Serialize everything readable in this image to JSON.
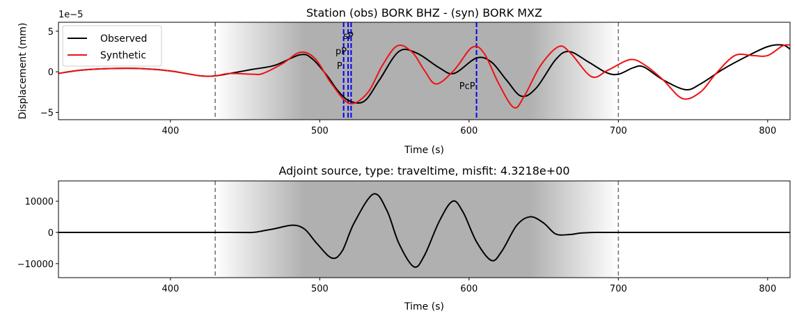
{
  "chart_data": [
    {
      "type": "line",
      "title": "Station (obs) BORK BHZ - (syn) BORK MXZ",
      "xlabel": "Time (s)",
      "ylabel": "Displacement (mm)",
      "y_offset_label": "1e−5",
      "xlim": [
        325,
        815
      ],
      "ylim": [
        -5.9,
        6.1
      ],
      "xticks": [
        400,
        500,
        600,
        700,
        800
      ],
      "yticks": [
        -5,
        0,
        5
      ],
      "window": {
        "start": 430,
        "end": 700,
        "colors": {
          "edge": "#ffffff",
          "core": "#b0b0b0"
        }
      },
      "phases": [
        {
          "name": "sP",
          "time": 521
        },
        {
          "name": "pP",
          "time": 519
        },
        {
          "name": "P",
          "time": 516
        },
        {
          "name": "PcP",
          "time": 605
        }
      ],
      "legend": {
        "position": "upper-left"
      },
      "series": [
        {
          "name": "Observed",
          "color": "#000000",
          "x": [
            325,
            340,
            360,
            380,
            400,
            420,
            430,
            440,
            455,
            470,
            487,
            495,
            505,
            512,
            520,
            530,
            540,
            553,
            565,
            580,
            590,
            605,
            615,
            625,
            635,
            645,
            658,
            667,
            680,
            692,
            700,
            710,
            717,
            730,
            745,
            755,
            770,
            785,
            800,
            810,
            815
          ],
          "y": [
            -0.2,
            0.2,
            0.4,
            0.4,
            0.1,
            -0.5,
            -0.5,
            -0.2,
            0.3,
            0.8,
            2.1,
            1.6,
            -0.5,
            -2.3,
            -3.6,
            -3.6,
            -1.0,
            2.5,
            2.3,
            0.5,
            -0.2,
            1.7,
            1.2,
            -1.0,
            -3.0,
            -2.0,
            1.5,
            2.5,
            1.2,
            -0.1,
            -0.3,
            0.5,
            0.6,
            -1.0,
            -2.2,
            -1.5,
            0.3,
            1.8,
            3.1,
            3.3,
            2.8
          ]
        },
        {
          "name": "Synthetic",
          "color": "#ee1111",
          "x": [
            325,
            340,
            360,
            380,
            400,
            420,
            430,
            440,
            455,
            462,
            475,
            487,
            497,
            508,
            520,
            532,
            542,
            552,
            562,
            570,
            578,
            590,
            602,
            610,
            620,
            630,
            637,
            648,
            660,
            668,
            682,
            693,
            708,
            718,
            730,
            743,
            755,
            765,
            778,
            790,
            800,
            810,
            815
          ],
          "y": [
            -0.2,
            0.2,
            0.4,
            0.4,
            0.1,
            -0.5,
            -0.5,
            -0.2,
            -0.3,
            -0.2,
            1.0,
            2.4,
            1.6,
            -1.5,
            -3.9,
            -2.6,
            0.8,
            3.2,
            2.4,
            0.2,
            -1.5,
            0.2,
            3.0,
            2.3,
            -1.5,
            -4.4,
            -3.0,
            0.8,
            3.1,
            2.3,
            -0.6,
            0.2,
            1.5,
            0.8,
            -1.0,
            -3.3,
            -2.5,
            -0.3,
            2.0,
            2.0,
            2.0,
            3.2,
            3.3
          ]
        }
      ]
    },
    {
      "type": "line",
      "title": "Adjoint source, type: traveltime, misfit: 4.3218e+00",
      "xlabel": "Time (s)",
      "ylabel": "",
      "xlim": [
        325,
        815
      ],
      "ylim": [
        -14500,
        16500
      ],
      "xticks": [
        400,
        500,
        600,
        700,
        800
      ],
      "yticks": [
        -10000,
        0,
        10000
      ],
      "ytick_labels": [
        "−10000",
        "0",
        "10000"
      ],
      "window": {
        "start": 430,
        "end": 700
      },
      "series": [
        {
          "color": "#000000",
          "x": [
            325,
            440,
            455,
            462,
            470,
            482,
            490,
            498,
            508,
            515,
            523,
            536,
            545,
            553,
            563,
            570,
            580,
            589,
            596,
            605,
            615,
            622,
            632,
            641,
            650,
            658,
            667,
            675,
            685,
            700,
            815
          ],
          "y": [
            0,
            0,
            0,
            500,
            1200,
            2300,
            1000,
            -3500,
            -8200,
            -6000,
            3000,
            12300,
            7000,
            -3500,
            -11000,
            -7500,
            3500,
            10000,
            6500,
            -3000,
            -9000,
            -6000,
            2300,
            5000,
            3000,
            -500,
            -700,
            -200,
            0,
            0,
            0
          ]
        }
      ]
    }
  ]
}
